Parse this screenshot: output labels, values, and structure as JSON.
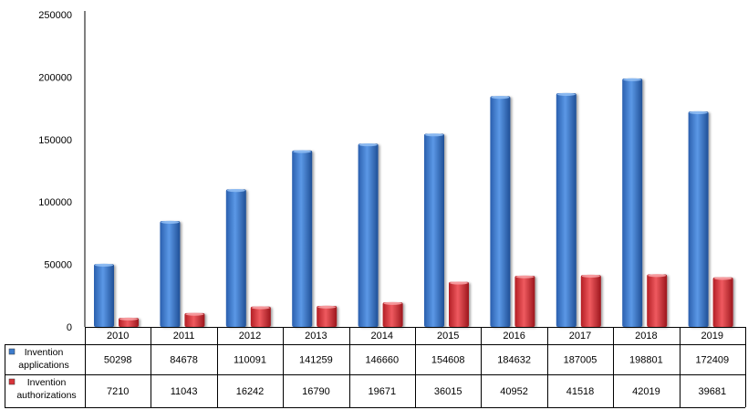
{
  "chart_data": {
    "type": "bar",
    "categories": [
      "2010",
      "2011",
      "2012",
      "2013",
      "2014",
      "2015",
      "2016",
      "2017",
      "2018",
      "2019"
    ],
    "series": [
      {
        "name": "Invention applications",
        "name_lines": [
          "Invention",
          "applications"
        ],
        "values": [
          50298,
          84678,
          110091,
          141259,
          146660,
          154608,
          184632,
          187005,
          198801,
          172409
        ],
        "color": "#3e7ccc"
      },
      {
        "name": "Invention authorizations",
        "name_lines": [
          "Invention",
          "authorizations"
        ],
        "values": [
          7210,
          11043,
          16242,
          16790,
          19671,
          36015,
          40952,
          41518,
          42019,
          39681
        ],
        "color": "#d8343a"
      }
    ],
    "yticks": [
      "0",
      "50000",
      "100000",
      "150000",
      "200000",
      "250000"
    ],
    "ylim": [
      0,
      250000
    ],
    "grid": false,
    "legend": "data-table"
  }
}
